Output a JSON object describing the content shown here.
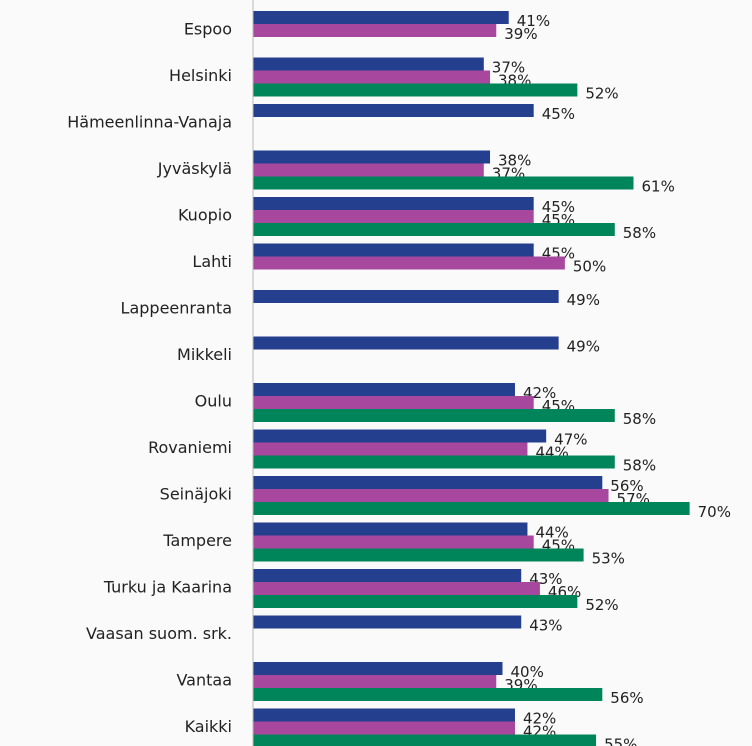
{
  "chart_data": {
    "type": "bar",
    "orientation": "horizontal",
    "categories": [
      "Espoo",
      "Helsinki",
      "Hämeenlinna-Vanaja",
      "Jyväskylä",
      "Kuopio",
      "Lahti",
      "Lappeenranta",
      "Mikkeli",
      "Oulu",
      "Rovaniemi",
      "Seinäjoki",
      "Tampere",
      "Turku ja Kaarina",
      "Vaasan suom. srk.",
      "Vantaa",
      "Kaikki"
    ],
    "series": [
      {
        "color": "#253f8f",
        "values": [
          41,
          37,
          45,
          38,
          45,
          45,
          49,
          49,
          42,
          47,
          56,
          44,
          43,
          43,
          40,
          42
        ],
        "value_labels": [
          "41%",
          "37%",
          "45%",
          "38%",
          "45%",
          "45%",
          "49%",
          "49%",
          "42%",
          "47%",
          "56%",
          "44%",
          "43%",
          "43%",
          "40%",
          "42%"
        ]
      },
      {
        "color": "#a8479e",
        "values": [
          39,
          38,
          null,
          37,
          45,
          50,
          null,
          null,
          45,
          44,
          57,
          45,
          46,
          null,
          39,
          42
        ],
        "value_labels": [
          "39%",
          "38%",
          null,
          "37%",
          "45%",
          "50%",
          null,
          null,
          "45%",
          "44%",
          "57%",
          "45%",
          "46%",
          null,
          "39%",
          "42%"
        ]
      },
      {
        "color": "#00845a",
        "values": [
          null,
          52,
          null,
          61,
          58,
          null,
          null,
          null,
          58,
          58,
          70,
          53,
          52,
          null,
          56,
          55
        ],
        "value_labels": [
          null,
          "52%",
          null,
          "61%",
          "58%",
          null,
          null,
          null,
          "58%",
          "58%",
          "70%",
          "53%",
          "52%",
          null,
          "56%",
          "55%"
        ]
      }
    ],
    "xlim": [
      0,
      80
    ]
  }
}
